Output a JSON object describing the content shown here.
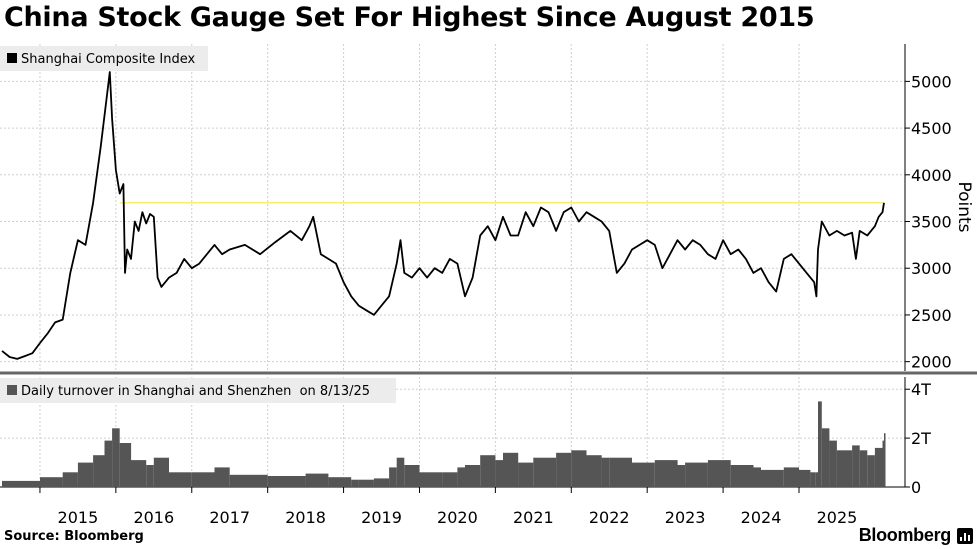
{
  "title": "China Stock Gauge Set For Highest Since August 2015",
  "source": "Source: Bloomberg",
  "brand": "Bloomberg",
  "colors": {
    "line": "#000000",
    "reference": "#fff000",
    "bars": "#555555",
    "grid": "#cfcfcf",
    "legend_bg": "#ececec"
  },
  "chart_data": [
    {
      "type": "line",
      "legend": "Shanghai Composite Index",
      "ylabel": "Points",
      "ylim": [
        1900,
        5400
      ],
      "yticks": [
        2000,
        2500,
        3000,
        3500,
        4000,
        4500,
        5000
      ],
      "reference_line": 3700,
      "series": [
        {
          "name": "Shanghai Composite Index",
          "x": [
            2014.0,
            2014.1,
            2014.2,
            2014.3,
            2014.4,
            2014.5,
            2014.6,
            2014.7,
            2014.8,
            2014.9,
            2015.0,
            2015.1,
            2015.2,
            2015.3,
            2015.42,
            2015.45,
            2015.5,
            2015.55,
            2015.6,
            2015.62,
            2015.65,
            2015.7,
            2015.75,
            2015.8,
            2015.85,
            2015.9,
            2015.95,
            2016.0,
            2016.05,
            2016.1,
            2016.2,
            2016.3,
            2016.4,
            2016.5,
            2016.6,
            2016.7,
            2016.8,
            2016.9,
            2017.0,
            2017.2,
            2017.4,
            2017.6,
            2017.8,
            2017.95,
            2018.05,
            2018.1,
            2018.2,
            2018.3,
            2018.4,
            2018.5,
            2018.6,
            2018.7,
            2018.8,
            2018.9,
            2019.0,
            2019.1,
            2019.2,
            2019.25,
            2019.3,
            2019.4,
            2019.5,
            2019.6,
            2019.7,
            2019.8,
            2019.9,
            2020.0,
            2020.1,
            2020.2,
            2020.3,
            2020.4,
            2020.5,
            2020.6,
            2020.7,
            2020.8,
            2020.9,
            2021.0,
            2021.1,
            2021.2,
            2021.3,
            2021.4,
            2021.5,
            2021.6,
            2021.7,
            2021.8,
            2021.9,
            2022.0,
            2022.1,
            2022.2,
            2022.3,
            2022.4,
            2022.5,
            2022.6,
            2022.7,
            2022.8,
            2022.9,
            2023.0,
            2023.1,
            2023.2,
            2023.3,
            2023.4,
            2023.5,
            2023.6,
            2023.7,
            2023.8,
            2023.9,
            2024.0,
            2024.1,
            2024.2,
            2024.3,
            2024.4,
            2024.5,
            2024.6,
            2024.7,
            2024.73,
            2024.75,
            2024.8,
            2024.9,
            2025.0,
            2025.1,
            2025.2,
            2025.25,
            2025.3,
            2025.4,
            2025.5,
            2025.55,
            2025.6,
            2025.62
          ],
          "values": [
            2115,
            2050,
            2030,
            2060,
            2090,
            2200,
            2300,
            2420,
            2450,
            2950,
            3300,
            3250,
            3700,
            4300,
            5100,
            4600,
            4050,
            3800,
            3900,
            2950,
            3200,
            3100,
            3500,
            3400,
            3600,
            3480,
            3580,
            3550,
            2900,
            2800,
            2900,
            2950,
            3100,
            3000,
            3050,
            3150,
            3250,
            3150,
            3200,
            3250,
            3150,
            3280,
            3400,
            3300,
            3450,
            3550,
            3150,
            3100,
            3050,
            2850,
            2700,
            2600,
            2550,
            2500,
            2600,
            2700,
            3050,
            3300,
            2950,
            2900,
            3000,
            2900,
            3000,
            2950,
            3100,
            3050,
            2700,
            2900,
            3350,
            3450,
            3300,
            3550,
            3350,
            3350,
            3600,
            3450,
            3650,
            3600,
            3400,
            3600,
            3650,
            3500,
            3600,
            3550,
            3500,
            3400,
            2950,
            3050,
            3200,
            3250,
            3300,
            3250,
            3000,
            3150,
            3300,
            3200,
            3300,
            3250,
            3150,
            3100,
            3300,
            3150,
            3200,
            3100,
            2950,
            3000,
            2850,
            2750,
            3100,
            3150,
            3050,
            2950,
            2850,
            2700,
            3200,
            3500,
            3350,
            3400,
            3350,
            3380,
            3100,
            3400,
            3350,
            3450,
            3550,
            3600,
            3700
          ]
        }
      ]
    },
    {
      "type": "bar",
      "legend": "Daily turnover in Shanghai and Shenzhen  on 8/13/25",
      "ylim": [
        0,
        4.5
      ],
      "yticks": [
        0,
        2,
        4
      ],
      "ytick_labels": [
        "0",
        "2T",
        "4T"
      ],
      "series": [
        {
          "name": "Daily turnover in Shanghai and Shenzhen",
          "x": [
            2014.0,
            2014.5,
            2014.8,
            2015.0,
            2015.2,
            2015.35,
            2015.45,
            2015.55,
            2015.7,
            2015.9,
            2016.0,
            2016.2,
            2016.5,
            2016.8,
            2017.0,
            2017.5,
            2018.0,
            2018.3,
            2018.6,
            2018.7,
            2018.9,
            2019.1,
            2019.2,
            2019.3,
            2019.5,
            2019.8,
            2020.0,
            2020.1,
            2020.3,
            2020.5,
            2020.6,
            2020.8,
            2021.0,
            2021.3,
            2021.5,
            2021.7,
            2021.9,
            2022.0,
            2022.3,
            2022.6,
            2022.9,
            2023.0,
            2023.3,
            2023.6,
            2023.9,
            2024.0,
            2024.3,
            2024.5,
            2024.65,
            2024.72,
            2024.75,
            2024.8,
            2024.9,
            2025.0,
            2025.2,
            2025.3,
            2025.4,
            2025.5,
            2025.6,
            2025.62
          ],
          "values": [
            0.25,
            0.4,
            0.6,
            1.0,
            1.3,
            1.9,
            2.4,
            1.8,
            1.1,
            0.9,
            1.2,
            0.6,
            0.6,
            0.8,
            0.5,
            0.45,
            0.55,
            0.4,
            0.3,
            0.3,
            0.35,
            0.8,
            1.2,
            0.9,
            0.6,
            0.6,
            0.8,
            0.9,
            1.3,
            1.1,
            1.4,
            1.0,
            1.2,
            1.4,
            1.5,
            1.3,
            1.2,
            1.2,
            1.0,
            1.1,
            0.9,
            1.0,
            1.1,
            0.9,
            0.8,
            0.7,
            0.8,
            0.7,
            0.6,
            0.6,
            3.5,
            2.4,
            1.9,
            1.5,
            1.7,
            1.5,
            1.3,
            1.6,
            1.9,
            2.2
          ]
        }
      ]
    }
  ],
  "x_axis": {
    "ticks": [
      2015,
      2016,
      2017,
      2018,
      2019,
      2020,
      2021,
      2022,
      2023,
      2024,
      2025
    ],
    "labels": [
      "2015",
      "2016",
      "2017",
      "2018",
      "2019",
      "2020",
      "2021",
      "2022",
      "2023",
      "2024",
      "2025"
    ]
  }
}
